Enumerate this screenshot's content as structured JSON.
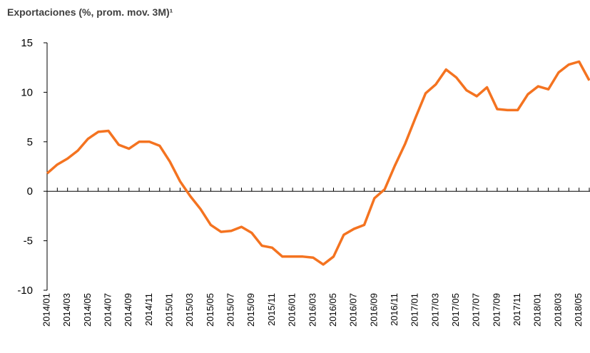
{
  "chart_data": {
    "type": "line",
    "title": "Exportaciones (%, prom. mov. 3M)¹",
    "categories": [
      "2014/01",
      null,
      "2014/03",
      null,
      "2014/05",
      null,
      "2014/07",
      null,
      "2014/09",
      null,
      "2014/11",
      null,
      "2015/01",
      null,
      "2015/03",
      null,
      "2015/05",
      null,
      "2015/07",
      null,
      "2015/09",
      null,
      "2015/11",
      null,
      "2016/01",
      null,
      "2016/03",
      null,
      "2016/05",
      null,
      "2016/07",
      null,
      "2016/09",
      null,
      "2016/11",
      null,
      "2017/01",
      null,
      "2017/03",
      null,
      "2017/05",
      null,
      "2017/07",
      null,
      "2017/09",
      null,
      "2017/11",
      null,
      "2018/01",
      null,
      "2018/03",
      null,
      "2018/05",
      null
    ],
    "series": [
      {
        "name": "Exportaciones",
        "color": "#f47320",
        "values": [
          1.8,
          2.7,
          3.3,
          4.1,
          5.3,
          6.0,
          6.1,
          4.7,
          4.3,
          5.0,
          5.0,
          4.6,
          3.0,
          1.0,
          -0.5,
          -1.8,
          -3.4,
          -4.1,
          -4.0,
          -3.6,
          -4.2,
          -5.5,
          -5.7,
          -6.6,
          -6.6,
          -6.6,
          -6.7,
          -7.4,
          -6.6,
          -4.4,
          -3.8,
          -3.4,
          -0.7,
          0.2,
          2.6,
          4.8,
          7.4,
          9.9,
          10.8,
          12.3,
          11.5,
          10.2,
          9.6,
          10.5,
          8.3,
          8.2,
          8.2,
          9.8,
          10.6,
          10.3,
          12.0,
          12.8,
          13.1,
          11.2
        ]
      }
    ],
    "ylim": [
      -10,
      15
    ],
    "yticks": [
      -10,
      -5,
      0,
      5,
      10,
      15
    ]
  }
}
